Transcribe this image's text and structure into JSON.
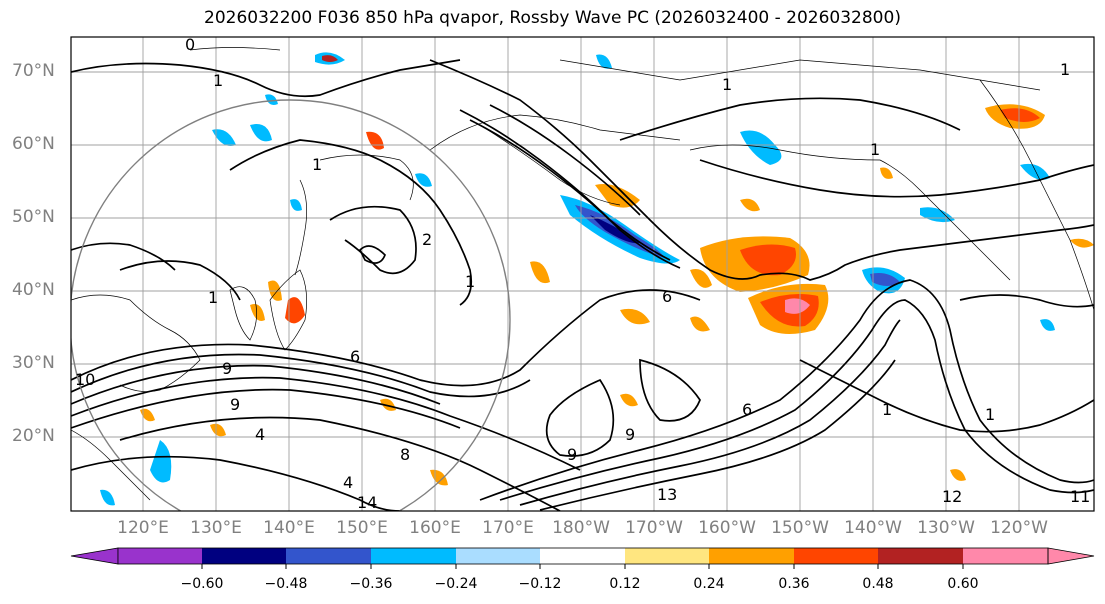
{
  "title": "2026032200 F036 850 hPa qvapor, Rossby Wave PC (2026032400 - 2026032800)",
  "latitude_labels": [
    "70°N",
    "60°N",
    "50°N",
    "40°N",
    "30°N",
    "20°N"
  ],
  "longitude_labels": [
    "120°E",
    "130°E",
    "140°E",
    "150°E",
    "160°E",
    "170°E",
    "180°W",
    "170°W",
    "160°W",
    "150°W",
    "140°W",
    "130°W",
    "120°W"
  ],
  "contour_labels": [
    "0",
    "1",
    "1",
    "1",
    "1",
    "1",
    "1",
    "1",
    "1",
    "1",
    "2",
    "4",
    "4",
    "6",
    "6",
    "6",
    "8",
    "9",
    "9",
    "9",
    "9",
    "10",
    "11",
    "12",
    "13",
    "14"
  ],
  "colorbar": {
    "tick_labels": [
      "−0.60",
      "−0.48",
      "−0.36",
      "−0.24",
      "−0.12",
      "0.12",
      "0.24",
      "0.36",
      "0.48",
      "0.60"
    ],
    "colors": [
      "#9933cc",
      "#000080",
      "#3355cc",
      "#00bbff",
      "#aaddff",
      "#ffffff",
      "#ffe680",
      "#ffa000",
      "#ff4500",
      "#b22222",
      "#ff88aa"
    ]
  },
  "colors": {
    "contour": "#000000",
    "coastline": "#000000",
    "gridline": "#a0a0a0",
    "circle": "#808080"
  }
}
